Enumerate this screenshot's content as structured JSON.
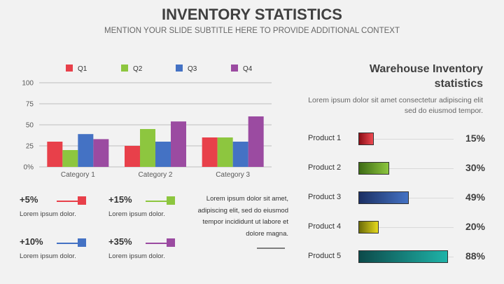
{
  "header": {
    "title": "INVENTORY STATISTICS",
    "subtitle": "MENTION YOUR SLIDE SUBTITLE HERE TO PROVIDE ADDITIONAL CONTEXT"
  },
  "colors": {
    "q1": "#e8404a",
    "q2": "#8dc63f",
    "q3": "#4472c4",
    "q4": "#9b4ba1"
  },
  "chart_data": {
    "type": "bar",
    "categories": [
      "Category 1",
      "Category 2",
      "Category 3"
    ],
    "series": [
      {
        "name": "Q1",
        "values": [
          30,
          25,
          35
        ]
      },
      {
        "name": "Q2",
        "values": [
          20,
          45,
          35
        ]
      },
      {
        "name": "Q3",
        "values": [
          39,
          30,
          30
        ]
      },
      {
        "name": "Q4",
        "values": [
          33,
          54,
          60
        ]
      }
    ],
    "yticks": [
      "0%",
      "25",
      "50",
      "75",
      "100"
    ],
    "ylim": [
      0,
      100
    ],
    "legend": "top",
    "grid": true
  },
  "stats": [
    {
      "value": "+5%",
      "desc": "Lorem ipsum dolor.",
      "color": "#e8404a"
    },
    {
      "value": "+15%",
      "desc": "Lorem ipsum dolor.",
      "color": "#8dc63f"
    },
    {
      "value": "+10%",
      "desc": "Lorem ipsum dolor.",
      "color": "#4472c4"
    },
    {
      "value": "+35%",
      "desc": "Lorem ipsum dolor.",
      "color": "#9b4ba1"
    }
  ],
  "paragraph": "Lorem ipsum dolor sit amet, adipiscing elit, sed do eiusmod tempor incididunt ut labore et dolore magna.",
  "warehouse": {
    "title": "Warehouse Inventory statistics",
    "desc": "Lorem ipsum dolor sit amet consectetur adipiscing elit sed do eiusmod tempor.",
    "products": [
      {
        "label": "Product 1",
        "value": "15%",
        "fraction": 0.15,
        "color_start": "#8b0e16",
        "color_end": "#ef4a52"
      },
      {
        "label": "Product 2",
        "value": "30%",
        "fraction": 0.3,
        "color_start": "#3d6b14",
        "color_end": "#8dc63f"
      },
      {
        "label": "Product 3",
        "value": "49%",
        "fraction": 0.49,
        "color_start": "#1b2f63",
        "color_end": "#4472c4"
      },
      {
        "label": "Product 4",
        "value": "20%",
        "fraction": 0.2,
        "color_start": "#6b6b08",
        "color_end": "#e5d91f"
      },
      {
        "label": "Product 5",
        "value": "88%",
        "fraction": 0.88,
        "color_start": "#0c4a4a",
        "color_end": "#1fb3a8"
      }
    ]
  }
}
